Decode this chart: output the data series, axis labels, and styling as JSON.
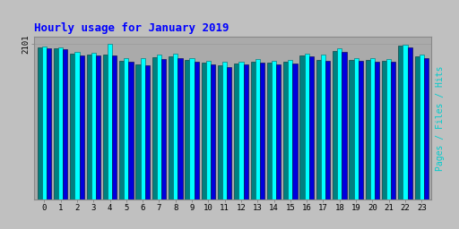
{
  "title": "Hourly usage for January 2019",
  "title_color": "#0000ff",
  "background_color": "#c0c0c0",
  "plot_bg_color": "#aaaaaa",
  "hours": [
    0,
    1,
    2,
    3,
    4,
    5,
    6,
    7,
    8,
    9,
    10,
    11,
    12,
    13,
    14,
    15,
    16,
    17,
    18,
    19,
    20,
    21,
    22,
    23
  ],
  "pages": [
    2050,
    2040,
    1970,
    1960,
    1960,
    1870,
    1830,
    1920,
    1930,
    1880,
    1850,
    1810,
    1840,
    1860,
    1850,
    1860,
    1950,
    1880,
    2010,
    1890,
    1880,
    1870,
    2075,
    1930
  ],
  "files": [
    2065,
    2055,
    1995,
    1985,
    2101,
    1910,
    1915,
    1955,
    1965,
    1915,
    1875,
    1855,
    1865,
    1895,
    1875,
    1885,
    1975,
    1955,
    2045,
    1915,
    1905,
    1895,
    2095,
    1955
  ],
  "hits": [
    2040,
    2030,
    1950,
    1940,
    1940,
    1855,
    1810,
    1900,
    1910,
    1860,
    1830,
    1790,
    1820,
    1845,
    1830,
    1840,
    1930,
    1870,
    1990,
    1875,
    1865,
    1855,
    2060,
    1910
  ],
  "ymax": 2200,
  "pages_color": "#008080",
  "files_color": "#00ffff",
  "hits_color": "#0000dd",
  "ylabel": "Pages / Files / Hits",
  "ylabel_color": "#00cccc",
  "font_family": "monospace",
  "title_fontsize": 9,
  "tick_fontsize": 6.5,
  "ylabel_fontsize": 7
}
